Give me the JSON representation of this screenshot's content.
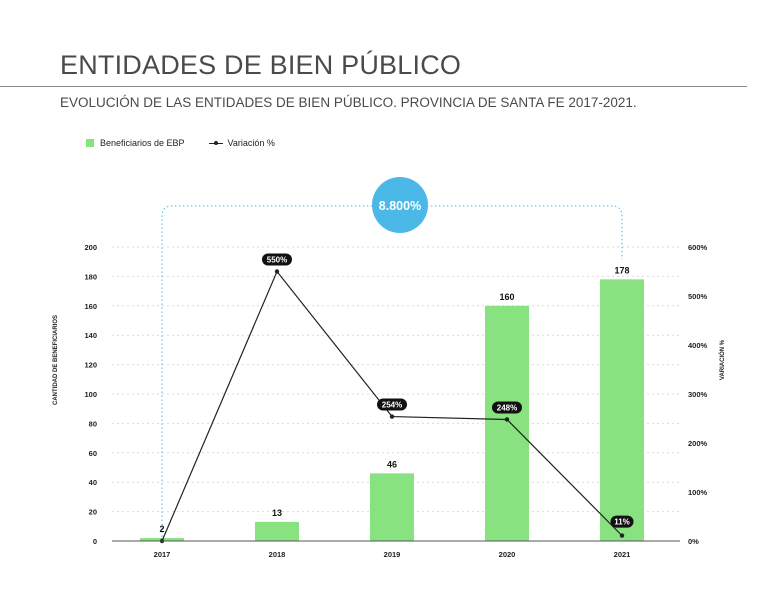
{
  "header": {
    "title": "ENTIDADES DE BIEN PÚBLICO",
    "subtitle": "EVOLUCIÓN DE LAS ENTIDADES DE BIEN PÚBLICO. PROVINCIA DE SANTA FE 2017-2021."
  },
  "legend": {
    "bars_label": "Beneficiarios de EBP",
    "line_label": "Variación %"
  },
  "highlight": {
    "label": "8.800%",
    "color": "#4bb8e8"
  },
  "colors": {
    "bar": "#88e27f",
    "line": "#222222",
    "badge": "#111111"
  },
  "chart_data": {
    "type": "bar",
    "categories": [
      "2017",
      "2018",
      "2019",
      "2020",
      "2021"
    ],
    "series": [
      {
        "name": "Beneficiarios de EBP",
        "type": "bar",
        "axis": "left",
        "values": [
          2,
          13,
          46,
          160,
          178
        ],
        "labels": [
          "2",
          "13",
          "46",
          "160",
          "178"
        ]
      },
      {
        "name": "Variación %",
        "type": "line",
        "axis": "right",
        "values": [
          0,
          550,
          254,
          248,
          11
        ],
        "labels": [
          "",
          "550%",
          "254%",
          "248%",
          "11%"
        ]
      }
    ],
    "ylabel": "CANTIDAD DE BENEFICIARIOS",
    "ylabel_right": "VARIACIÓN %",
    "ylim": [
      0,
      200
    ],
    "yticks": [
      "0",
      "20",
      "40",
      "60",
      "80",
      "100",
      "120",
      "140",
      "160",
      "180",
      "200"
    ],
    "ylim_right": [
      0,
      600
    ],
    "yticks_right": [
      "0%",
      "100%",
      "200%",
      "300%",
      "400%",
      "500%",
      "600%"
    ],
    "grid": true
  }
}
